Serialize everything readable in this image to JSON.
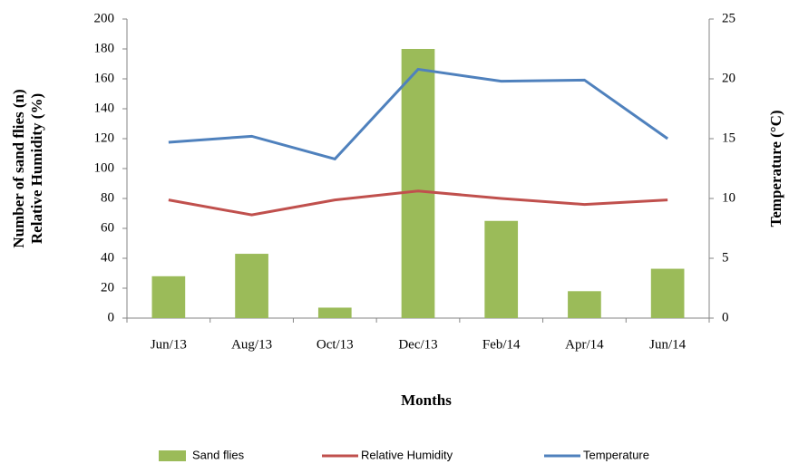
{
  "chart_data": {
    "type": "bar-line",
    "y_label": [
      "Number of sand flies (n)",
      "Relative Humidity (%)"
    ],
    "y2_label": "Temperature (°C)",
    "x_label": "Months",
    "categories": [
      "Jun/13",
      "Aug/13",
      "Oct/13",
      "Dec/13",
      "Feb/14",
      "Apr/14",
      "Jun/14"
    ],
    "series": [
      {
        "name": "Sand flies",
        "type": "bar",
        "color": "#9bbb59",
        "values": [
          28,
          43,
          7,
          180,
          65,
          18,
          33
        ]
      },
      {
        "name": "Relative Humidity",
        "type": "line",
        "color": "#c0504d",
        "values": [
          79,
          69,
          79,
          85,
          80,
          76,
          79
        ]
      },
      {
        "name": "Temperature",
        "type": "line",
        "color": "#4f81bd",
        "axis": "y2",
        "values": [
          14.7,
          15.2,
          13.3,
          20.8,
          19.8,
          19.9,
          15
        ]
      }
    ],
    "ylim": [
      0,
      200
    ],
    "yticks": [
      0,
      20,
      40,
      60,
      80,
      100,
      120,
      140,
      160,
      180,
      200
    ],
    "y2lim": [
      0,
      25
    ],
    "y2ticks": [
      0,
      5,
      10,
      15,
      20,
      25
    ],
    "legend": "bottom",
    "grid": false
  }
}
